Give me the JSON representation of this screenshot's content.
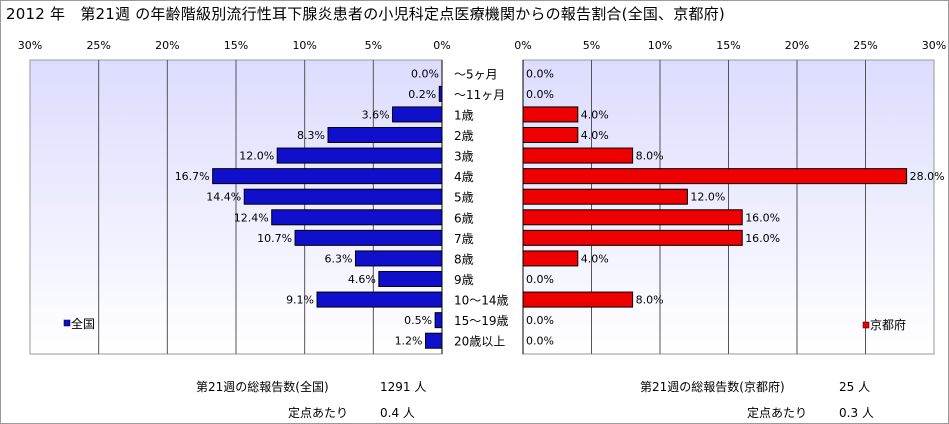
{
  "title": "2012 年　第21週 の年齢階級別流行性耳下腺炎患者の小児科定点医療機関からの報告割合(全国、京都府)",
  "chart_data": {
    "type": "bar",
    "orientation": "horizontal",
    "categories": [
      "～5ヶ月",
      "～11ヶ月",
      "1歳",
      "2歳",
      "3歳",
      "4歳",
      "5歳",
      "6歳",
      "7歳",
      "8歳",
      "9歳",
      "10～14歳",
      "15～19歳",
      "20歳以上"
    ],
    "series": [
      {
        "name": "全国",
        "color": "#1010cc",
        "values": [
          0.0,
          0.2,
          3.6,
          8.3,
          12.0,
          16.7,
          14.4,
          12.4,
          10.7,
          6.3,
          4.6,
          9.1,
          0.5,
          1.2
        ],
        "labels": [
          "0.0%",
          "0.2%",
          "3.6%",
          "8.3%",
          "12.0%",
          "16.7%",
          "14.4%",
          "12.4%",
          "10.7%",
          "6.3%",
          "4.6%",
          "9.1%",
          "0.5%",
          "1.2%"
        ]
      },
      {
        "name": "京都府",
        "color": "#ee0000",
        "values": [
          0.0,
          0.0,
          4.0,
          4.0,
          8.0,
          28.0,
          12.0,
          16.0,
          16.0,
          4.0,
          0.0,
          8.0,
          0.0,
          0.0
        ],
        "labels": [
          "0.0%",
          "0.0%",
          "4.0%",
          "4.0%",
          "8.0%",
          "28.0%",
          "12.0%",
          "16.0%",
          "16.0%",
          "4.0%",
          "0.0%",
          "8.0%",
          "0.0%",
          "0.0%"
        ]
      }
    ],
    "xlim": [
      0,
      30
    ],
    "left_ticks": [
      "30%",
      "25%",
      "20%",
      "15%",
      "10%",
      "5%",
      "0%"
    ],
    "right_ticks": [
      "0%",
      "5%",
      "10%",
      "15%",
      "20%",
      "25%",
      "30%"
    ],
    "grid": true
  },
  "footer": {
    "national_total_label": "第21週の総報告数(全国)",
    "national_total_value": "1291 人",
    "national_per_label": "定点あたり",
    "national_per_value": "0.4 人",
    "kyoto_total_label": "第21週の総報告数(京都府)",
    "kyoto_total_value": "25 人",
    "kyoto_per_label": "定点あたり",
    "kyoto_per_value": "0.3 人"
  },
  "colors": {
    "plot_bg_light": "#dcdcff",
    "plot_bg_dark": "#ffffff",
    "grid": "#555555",
    "bar_outline": "#000000"
  }
}
